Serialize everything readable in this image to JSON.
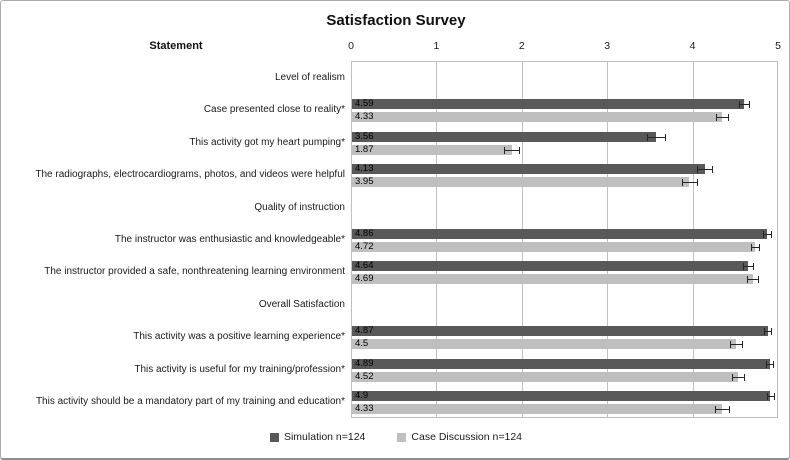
{
  "title": "Satisfaction Survey",
  "statement_header": "Statement",
  "legend": {
    "simulation": {
      "label": "Simulation n=124",
      "color": "#595959"
    },
    "case_discussion": {
      "label": "Case Discussion n=124",
      "color": "#bfbfbf"
    }
  },
  "colors": {
    "simulation_bar": "#595959",
    "case_discussion_bar": "#bfbfbf",
    "gridline": "#c0c0c0",
    "plot_border": "#bfbfbf",
    "error_bar": "#262626",
    "text": "#1a1a1a"
  },
  "chart_data": {
    "type": "bar",
    "orientation": "horizontal",
    "title": "Satisfaction Survey",
    "xlim": [
      0,
      5
    ],
    "x_ticks": [
      0,
      1,
      2,
      3,
      4,
      5
    ],
    "grid": true,
    "legend_position": "bottom",
    "series": [
      "Simulation n=124",
      "Case Discussion n=124"
    ],
    "rows": [
      {
        "kind": "section",
        "label": "Level of realism"
      },
      {
        "kind": "item",
        "label": "Case presented close to reality*",
        "simulation": 4.59,
        "simulation_label": "4.59",
        "simulation_err": 0.06,
        "case_discussion": 4.33,
        "case_discussion_label": "4.33",
        "case_discussion_err": 0.07
      },
      {
        "kind": "item",
        "label": "This activity got my heart pumping*",
        "simulation": 3.56,
        "simulation_label": "3.56",
        "simulation_err": 0.11,
        "case_discussion": 1.87,
        "case_discussion_label": "1.87",
        "case_discussion_err": 0.09
      },
      {
        "kind": "item",
        "label": "The radiographs, electrocardiograms, photos, and videos were helpful",
        "simulation": 4.13,
        "simulation_label": "4.13",
        "simulation_err": 0.09,
        "case_discussion": 3.95,
        "case_discussion_label": "3.95",
        "case_discussion_err": 0.09
      },
      {
        "kind": "section",
        "label": "Quality of instruction"
      },
      {
        "kind": "item",
        "label": "The instructor was enthusiastic and knowledgeable*",
        "simulation": 4.86,
        "simulation_label": "4.86",
        "simulation_err": 0.05,
        "case_discussion": 4.72,
        "case_discussion_label": "4.72",
        "case_discussion_err": 0.05
      },
      {
        "kind": "item",
        "label": "The instructor provided a safe, nonthreatening learning environment",
        "simulation": 4.64,
        "simulation_label": "4.64",
        "simulation_err": 0.06,
        "case_discussion": 4.69,
        "case_discussion_label": "4.69",
        "case_discussion_err": 0.06
      },
      {
        "kind": "section",
        "label": "Overall Satisfaction"
      },
      {
        "kind": "item",
        "label": "This activity was a positive learning experience*",
        "simulation": 4.87,
        "simulation_label": "4.87",
        "simulation_err": 0.04,
        "case_discussion": 4.5,
        "case_discussion_label": "4.5",
        "case_discussion_err": 0.07
      },
      {
        "kind": "item",
        "label": "This activity is useful for my training/profession*",
        "simulation": 4.89,
        "simulation_label": "4.89",
        "simulation_err": 0.04,
        "case_discussion": 4.52,
        "case_discussion_label": "4.52",
        "case_discussion_err": 0.07
      },
      {
        "kind": "item",
        "label": "This activity should be a mandatory part of my training and education*",
        "simulation": 4.9,
        "simulation_label": "4.9",
        "simulation_err": 0.04,
        "case_discussion": 4.33,
        "case_discussion_label": "4.33",
        "case_discussion_err": 0.08
      }
    ]
  }
}
